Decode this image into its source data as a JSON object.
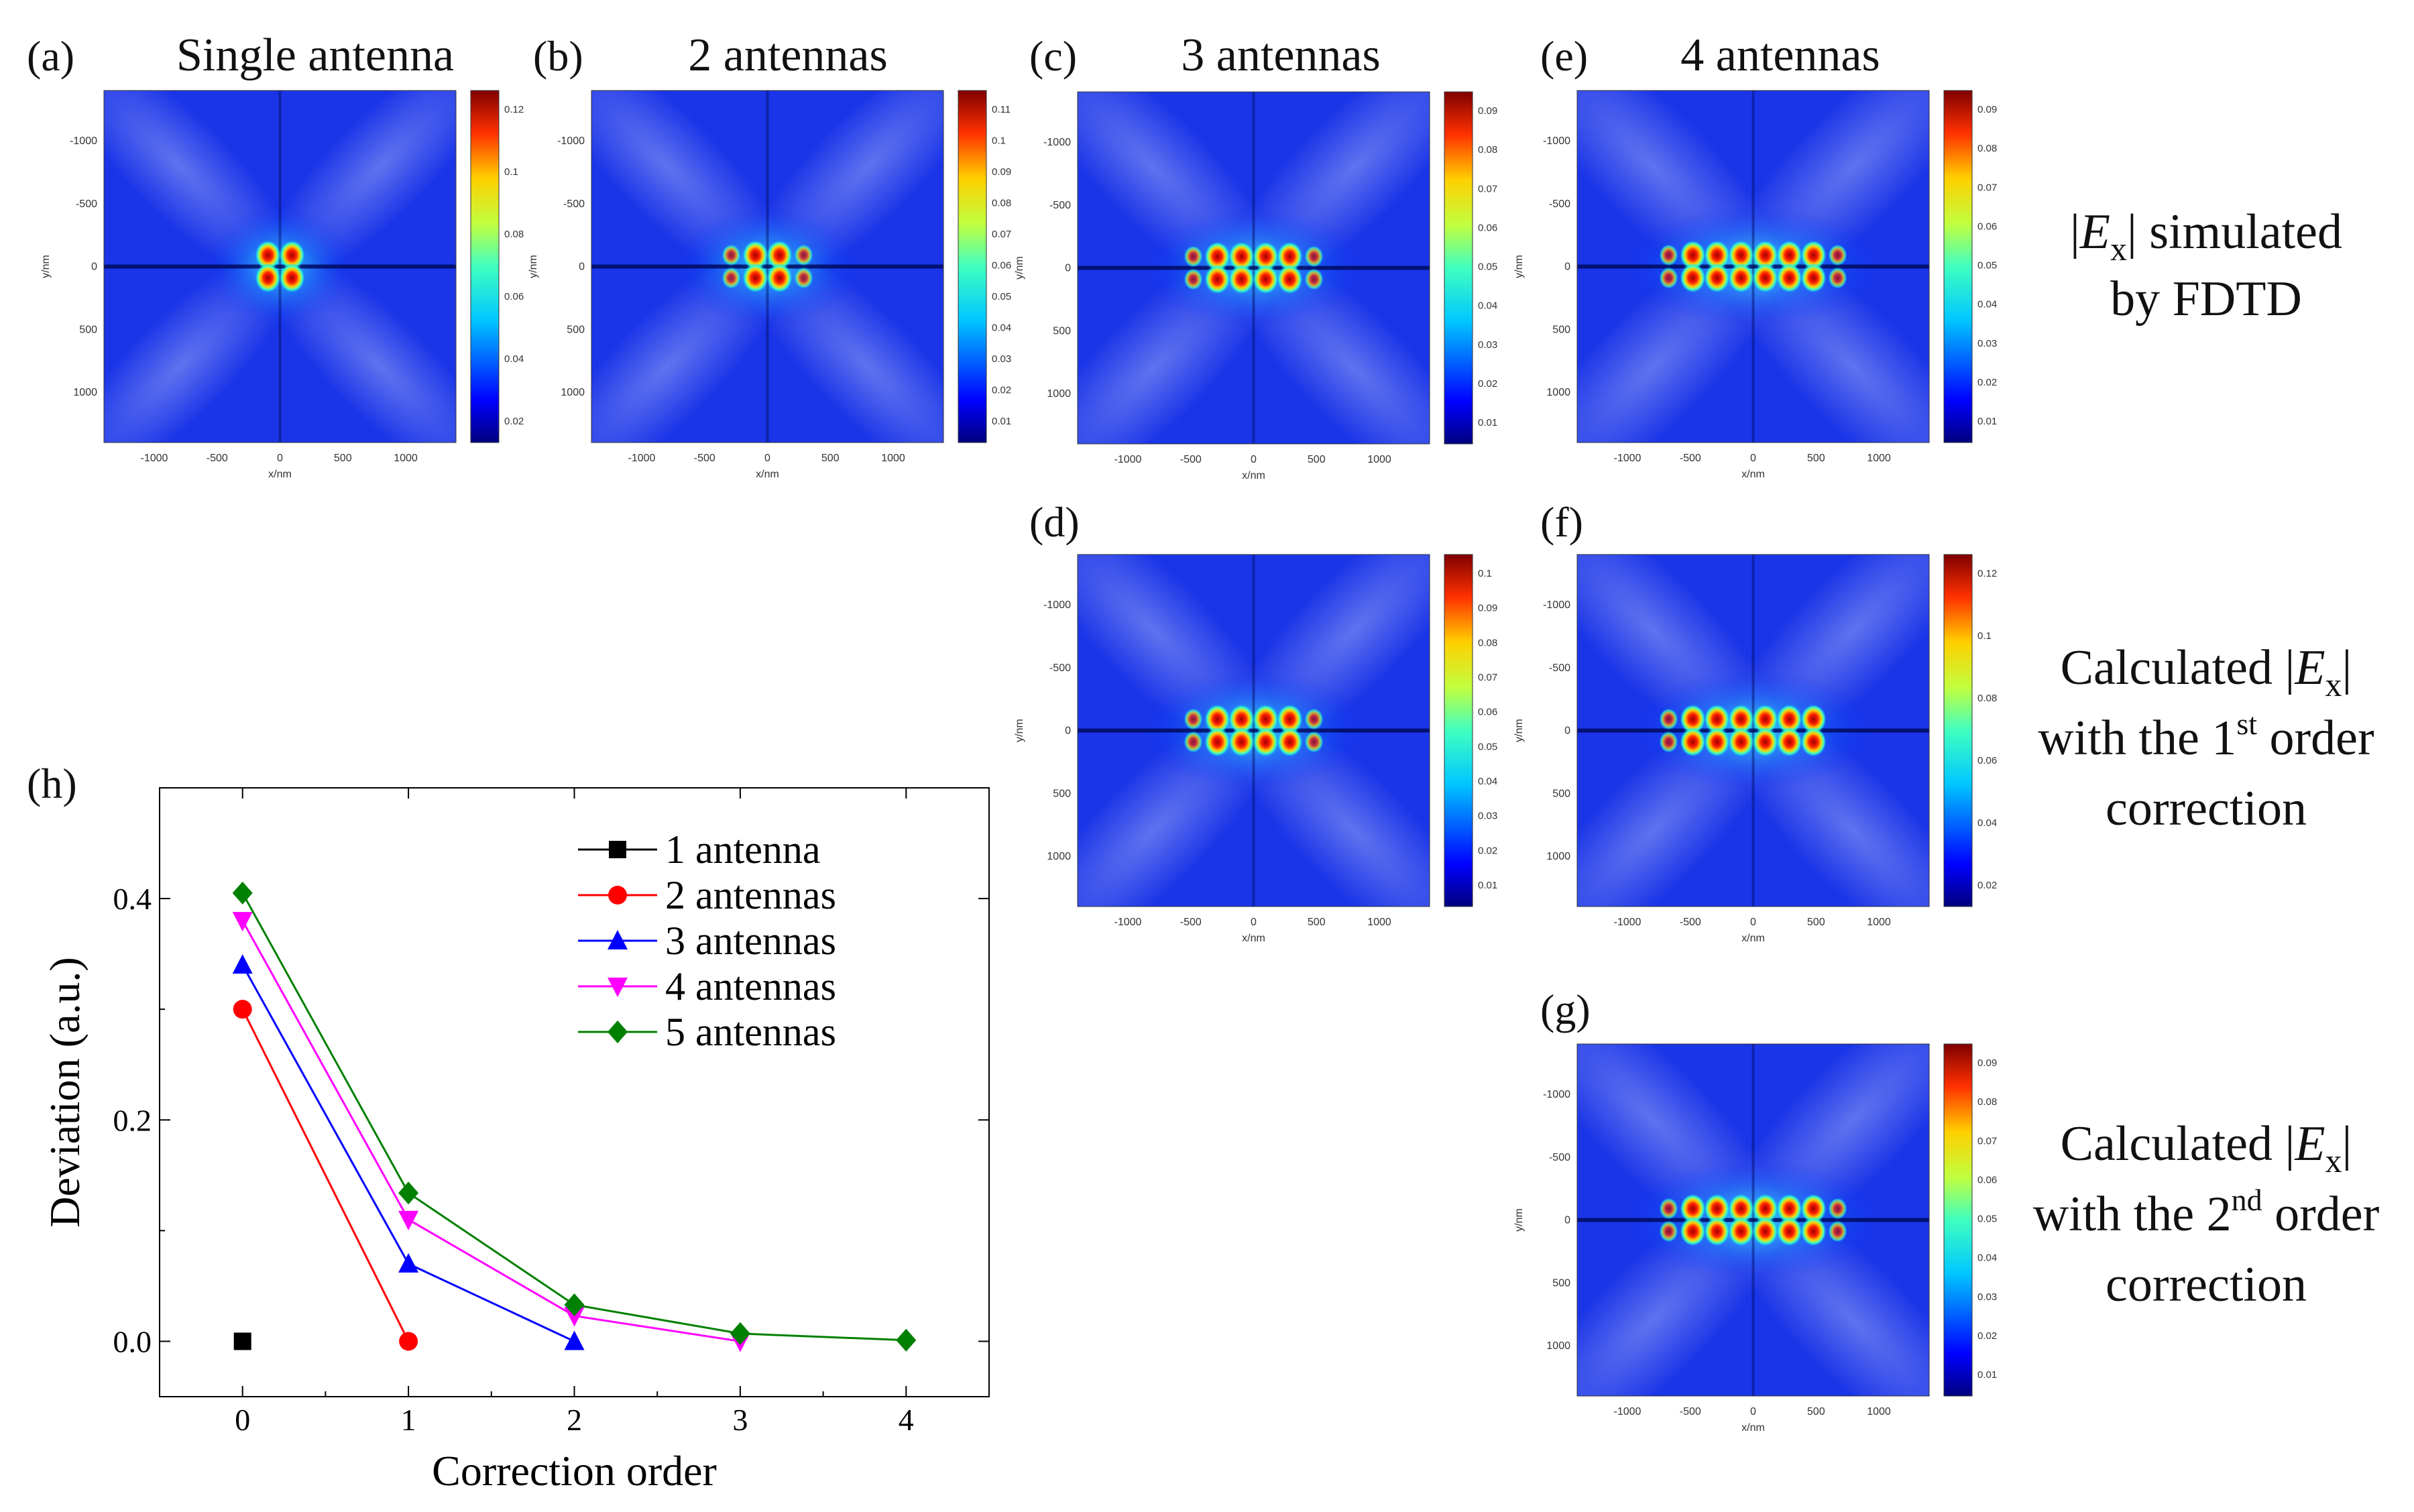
{
  "figure": {
    "panels": [
      {
        "id": "a",
        "label": "(a)",
        "title": "Single antenna",
        "colorbar_ticks": [
          "0.12",
          "0.1",
          "0.08",
          "0.06",
          "0.04",
          "0.02"
        ],
        "lobes": [
          -1,
          1
        ]
      },
      {
        "id": "b",
        "label": "(b)",
        "title": "2 antennas",
        "colorbar_ticks": [
          "0.11",
          "0.1",
          "0.09",
          "0.08",
          "0.07",
          "0.06",
          "0.05",
          "0.04",
          "0.03",
          "0.02",
          "0.01"
        ],
        "lobes": [
          -3,
          -1,
          1,
          3
        ]
      },
      {
        "id": "c",
        "label": "(c)",
        "title": "3 antennas",
        "colorbar_ticks": [
          "0.09",
          "0.08",
          "0.07",
          "0.06",
          "0.05",
          "0.04",
          "0.03",
          "0.02",
          "0.01"
        ],
        "lobes": [
          -5,
          -3,
          -1,
          1,
          3,
          5
        ]
      },
      {
        "id": "e",
        "label": "(e)",
        "title": "4 antennas",
        "colorbar_ticks": [
          "0.09",
          "0.08",
          "0.07",
          "0.06",
          "0.05",
          "0.04",
          "0.03",
          "0.02",
          "0.01"
        ],
        "lobes": [
          -7,
          -5,
          -3,
          -1,
          1,
          3,
          5,
          7
        ]
      },
      {
        "id": "d",
        "label": "(d)",
        "title": "",
        "colorbar_ticks": [
          "0.1",
          "0.09",
          "0.08",
          "0.07",
          "0.06",
          "0.05",
          "0.04",
          "0.03",
          "0.02",
          "0.01"
        ],
        "lobes": [
          -5,
          -3,
          -1,
          1,
          3,
          5
        ]
      },
      {
        "id": "f",
        "label": "(f)",
        "title": "",
        "colorbar_ticks": [
          "0.12",
          "0.1",
          "0.08",
          "0.06",
          "0.04",
          "0.02"
        ],
        "lobes": [
          -7,
          -5,
          -3,
          -1,
          1,
          3,
          5
        ]
      },
      {
        "id": "g",
        "label": "(g)",
        "title": "",
        "colorbar_ticks": [
          "0.09",
          "0.08",
          "0.07",
          "0.06",
          "0.05",
          "0.04",
          "0.03",
          "0.02",
          "0.01"
        ],
        "lobes": [
          -7,
          -5,
          -3,
          -1,
          1,
          3,
          5,
          7
        ]
      }
    ],
    "map_x_ticks": [
      "-1000",
      "-500",
      "0",
      "500",
      "1000"
    ],
    "map_y_ticks": [
      "-1000",
      "-500",
      "0",
      "500",
      "1000"
    ],
    "map_xlabel": "x/nm",
    "map_ylabel": "y/nm",
    "row_labels": [
      {
        "pre": "|",
        "var": "E",
        "sub": "x",
        "post": "| simulated",
        "line2": "by FDTD",
        "line3": ""
      },
      {
        "pre": "Calculated |",
        "var": "E",
        "sub": "x",
        "post": "|",
        "line2pre": "with the 1",
        "sup": "st",
        "line2post": " order",
        "line3": "correction"
      },
      {
        "pre": "Calculated |",
        "var": "E",
        "sub": "x",
        "post": "|",
        "line2pre": "with the 2",
        "sup": "nd",
        "line2post": " order",
        "line3": "correction"
      }
    ]
  },
  "chart_data": {
    "type": "line",
    "panel_label": "(h)",
    "xlabel": "Correction order",
    "ylabel": "Deviation (a.u.)",
    "xlim": [
      -0.5,
      4.5
    ],
    "ylim": [
      -0.05,
      0.5
    ],
    "xticks": [
      0,
      1,
      2,
      3,
      4
    ],
    "yticks": [
      0.0,
      0.2,
      0.4
    ],
    "ytick_labels": [
      "0.0",
      "0.2",
      "0.4"
    ],
    "legend_position": "top-right",
    "series": [
      {
        "name": "1 antenna",
        "color": "#000000",
        "marker": "square",
        "x": [
          0
        ],
        "y": [
          0.0
        ]
      },
      {
        "name": "2 antennas",
        "color": "#ff0000",
        "marker": "circle",
        "x": [
          0,
          1
        ],
        "y": [
          0.3,
          0.0
        ]
      },
      {
        "name": "3 antennas",
        "color": "#0000ff",
        "marker": "triangle-up",
        "x": [
          0,
          1,
          2
        ],
        "y": [
          0.34,
          0.07,
          0.0
        ]
      },
      {
        "name": "4 antennas",
        "color": "#ff00ff",
        "marker": "triangle-down",
        "x": [
          0,
          1,
          2,
          3
        ],
        "y": [
          0.38,
          0.11,
          0.023,
          0.0
        ]
      },
      {
        "name": "5 antennas",
        "color": "#008000",
        "marker": "diamond",
        "x": [
          0,
          1,
          2,
          3,
          4
        ],
        "y": [
          0.405,
          0.134,
          0.033,
          0.007,
          0.001
        ]
      }
    ]
  }
}
